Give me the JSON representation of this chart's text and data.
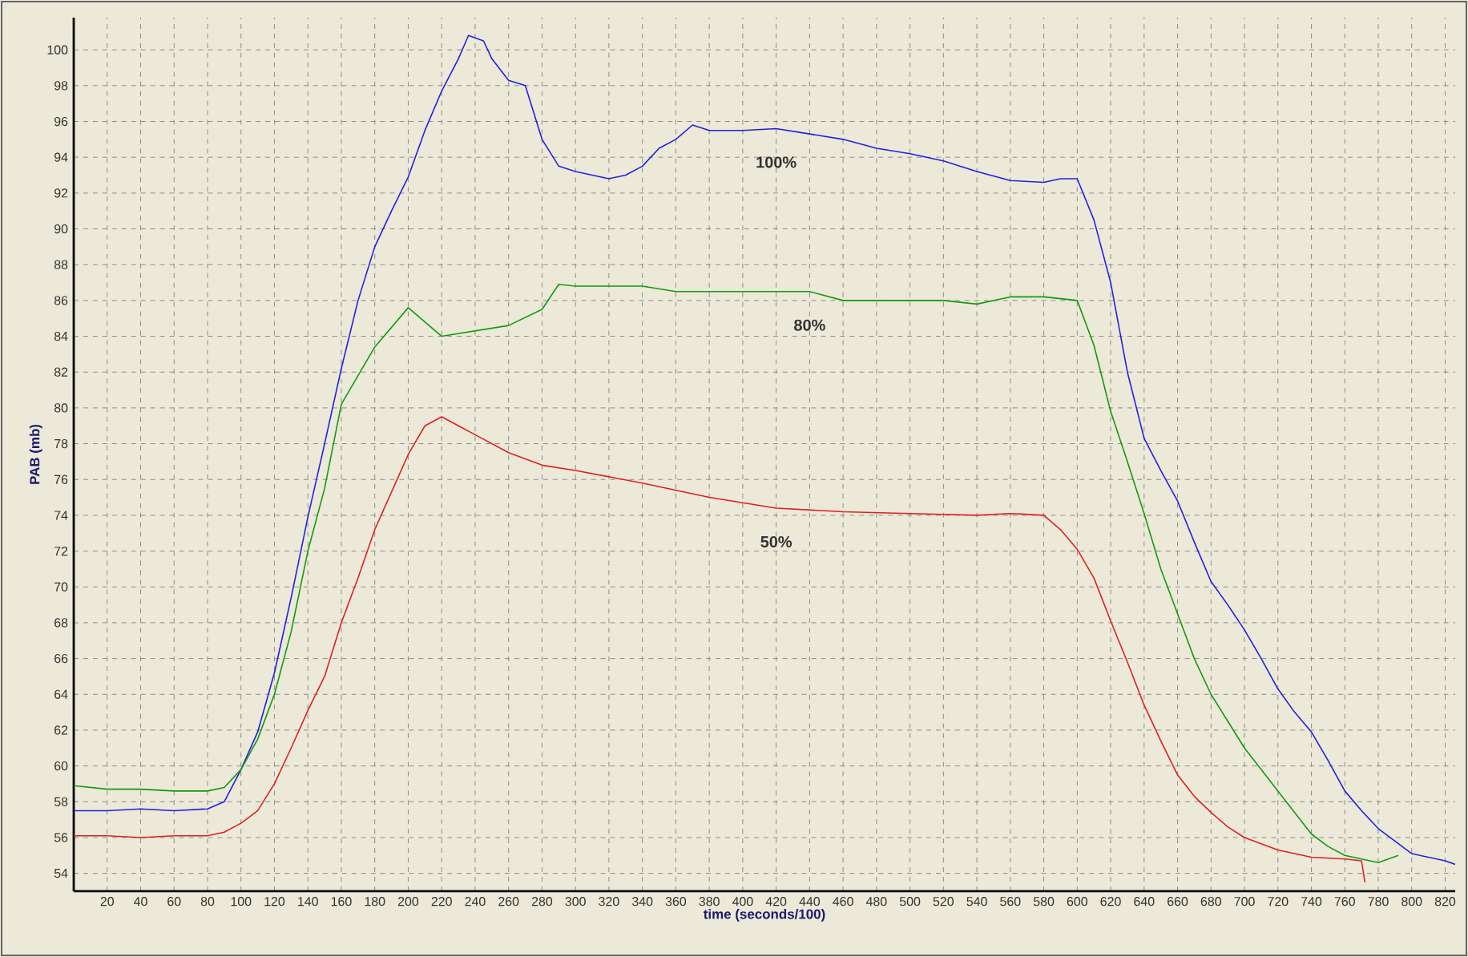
{
  "chart_data": {
    "type": "line",
    "xlabel": "time (seconds/100)",
    "ylabel": "PAB (mb)",
    "xlim": [
      0,
      826
    ],
    "ylim": [
      53,
      101.8
    ],
    "xticks": [
      20,
      40,
      60,
      80,
      100,
      120,
      140,
      160,
      180,
      200,
      220,
      240,
      260,
      280,
      300,
      320,
      340,
      360,
      380,
      400,
      420,
      440,
      460,
      480,
      500,
      520,
      540,
      560,
      580,
      600,
      620,
      640,
      660,
      680,
      700,
      720,
      740,
      760,
      780,
      800,
      820
    ],
    "yticks": [
      54,
      56,
      58,
      60,
      62,
      64,
      66,
      68,
      70,
      72,
      74,
      76,
      78,
      80,
      82,
      84,
      86,
      88,
      90,
      92,
      94,
      96,
      98,
      100
    ],
    "grid": true,
    "legend": false,
    "series": [
      {
        "name": "100%",
        "color": "#2020e0",
        "x": [
          0,
          20,
          40,
          60,
          80,
          90,
          100,
          110,
          120,
          130,
          140,
          150,
          160,
          170,
          180,
          190,
          200,
          210,
          220,
          230,
          236,
          245,
          250,
          260,
          270,
          280,
          290,
          300,
          310,
          320,
          330,
          340,
          350,
          360,
          370,
          380,
          400,
          420,
          440,
          460,
          480,
          500,
          520,
          540,
          560,
          580,
          590,
          600,
          610,
          620,
          630,
          640,
          650,
          660,
          670,
          680,
          690,
          700,
          710,
          720,
          730,
          740,
          750,
          760,
          770,
          780,
          790,
          800,
          810,
          820,
          826
        ],
        "values": [
          57.5,
          57.5,
          57.6,
          57.5,
          57.6,
          58,
          59.8,
          61.9,
          65.2,
          69.4,
          73.9,
          78,
          82.2,
          86,
          89,
          91,
          92.9,
          95.5,
          97.7,
          99.5,
          100.8,
          100.5,
          99.5,
          98.3,
          98,
          95,
          93.5,
          93.2,
          93,
          92.8,
          93,
          93.5,
          94.5,
          95,
          95.8,
          95.5,
          95.5,
          95.6,
          95.3,
          95,
          94.5,
          94.2,
          93.8,
          93.2,
          92.7,
          92.6,
          92.8,
          92.8,
          90.5,
          87,
          82,
          78.3,
          76.5,
          74.8,
          72.5,
          70.3,
          69,
          67.6,
          66,
          64.3,
          63,
          61.9,
          60.3,
          58.6,
          57.5,
          56.5,
          55.8,
          55.1,
          54.9,
          54.7,
          54.5
        ]
      },
      {
        "name": "80%",
        "color": "#119911",
        "x": [
          0,
          20,
          40,
          60,
          80,
          90,
          100,
          110,
          120,
          130,
          140,
          150,
          160,
          180,
          200,
          220,
          240,
          260,
          280,
          290,
          300,
          340,
          360,
          440,
          460,
          520,
          540,
          560,
          580,
          600,
          610,
          620,
          630,
          640,
          650,
          660,
          670,
          680,
          690,
          700,
          710,
          720,
          730,
          740,
          750,
          760,
          770,
          780,
          792
        ],
        "values": [
          58.9,
          58.7,
          58.7,
          58.6,
          58.6,
          58.8,
          59.8,
          61.5,
          64,
          67.5,
          72,
          75.5,
          80.2,
          83.4,
          85.6,
          84,
          84.3,
          84.6,
          85.5,
          86.9,
          86.8,
          86.8,
          86.5,
          86.5,
          86,
          86,
          85.8,
          86.2,
          86.2,
          86,
          83.5,
          79.8,
          77,
          74.1,
          71,
          68.5,
          66,
          64,
          62.5,
          61,
          59.8,
          58.6,
          57.4,
          56.2,
          55.5,
          55,
          54.8,
          54.6,
          55
        ]
      },
      {
        "name": "50%",
        "color": "#e02020",
        "x": [
          0,
          20,
          40,
          60,
          80,
          90,
          100,
          110,
          120,
          130,
          140,
          150,
          160,
          170,
          180,
          190,
          200,
          210,
          220,
          230,
          240,
          260,
          280,
          300,
          340,
          380,
          420,
          460,
          500,
          540,
          560,
          580,
          590,
          600,
          610,
          620,
          630,
          640,
          650,
          660,
          670,
          680,
          690,
          700,
          720,
          740,
          760,
          770,
          772
        ],
        "values": [
          56.1,
          56.1,
          56,
          56.1,
          56.1,
          56.3,
          56.8,
          57.5,
          59,
          61,
          63.1,
          65,
          68,
          70.5,
          73.2,
          75.3,
          77.4,
          79,
          79.5,
          79,
          78.5,
          77.5,
          76.8,
          76.5,
          75.8,
          75,
          74.4,
          74.2,
          74.1,
          74,
          74.1,
          74,
          73.2,
          72.1,
          70.5,
          68.1,
          65.8,
          63.4,
          61.4,
          59.5,
          58.3,
          57.4,
          56.6,
          56,
          55.3,
          54.9,
          54.8,
          54.7,
          53.5
        ]
      }
    ]
  }
}
